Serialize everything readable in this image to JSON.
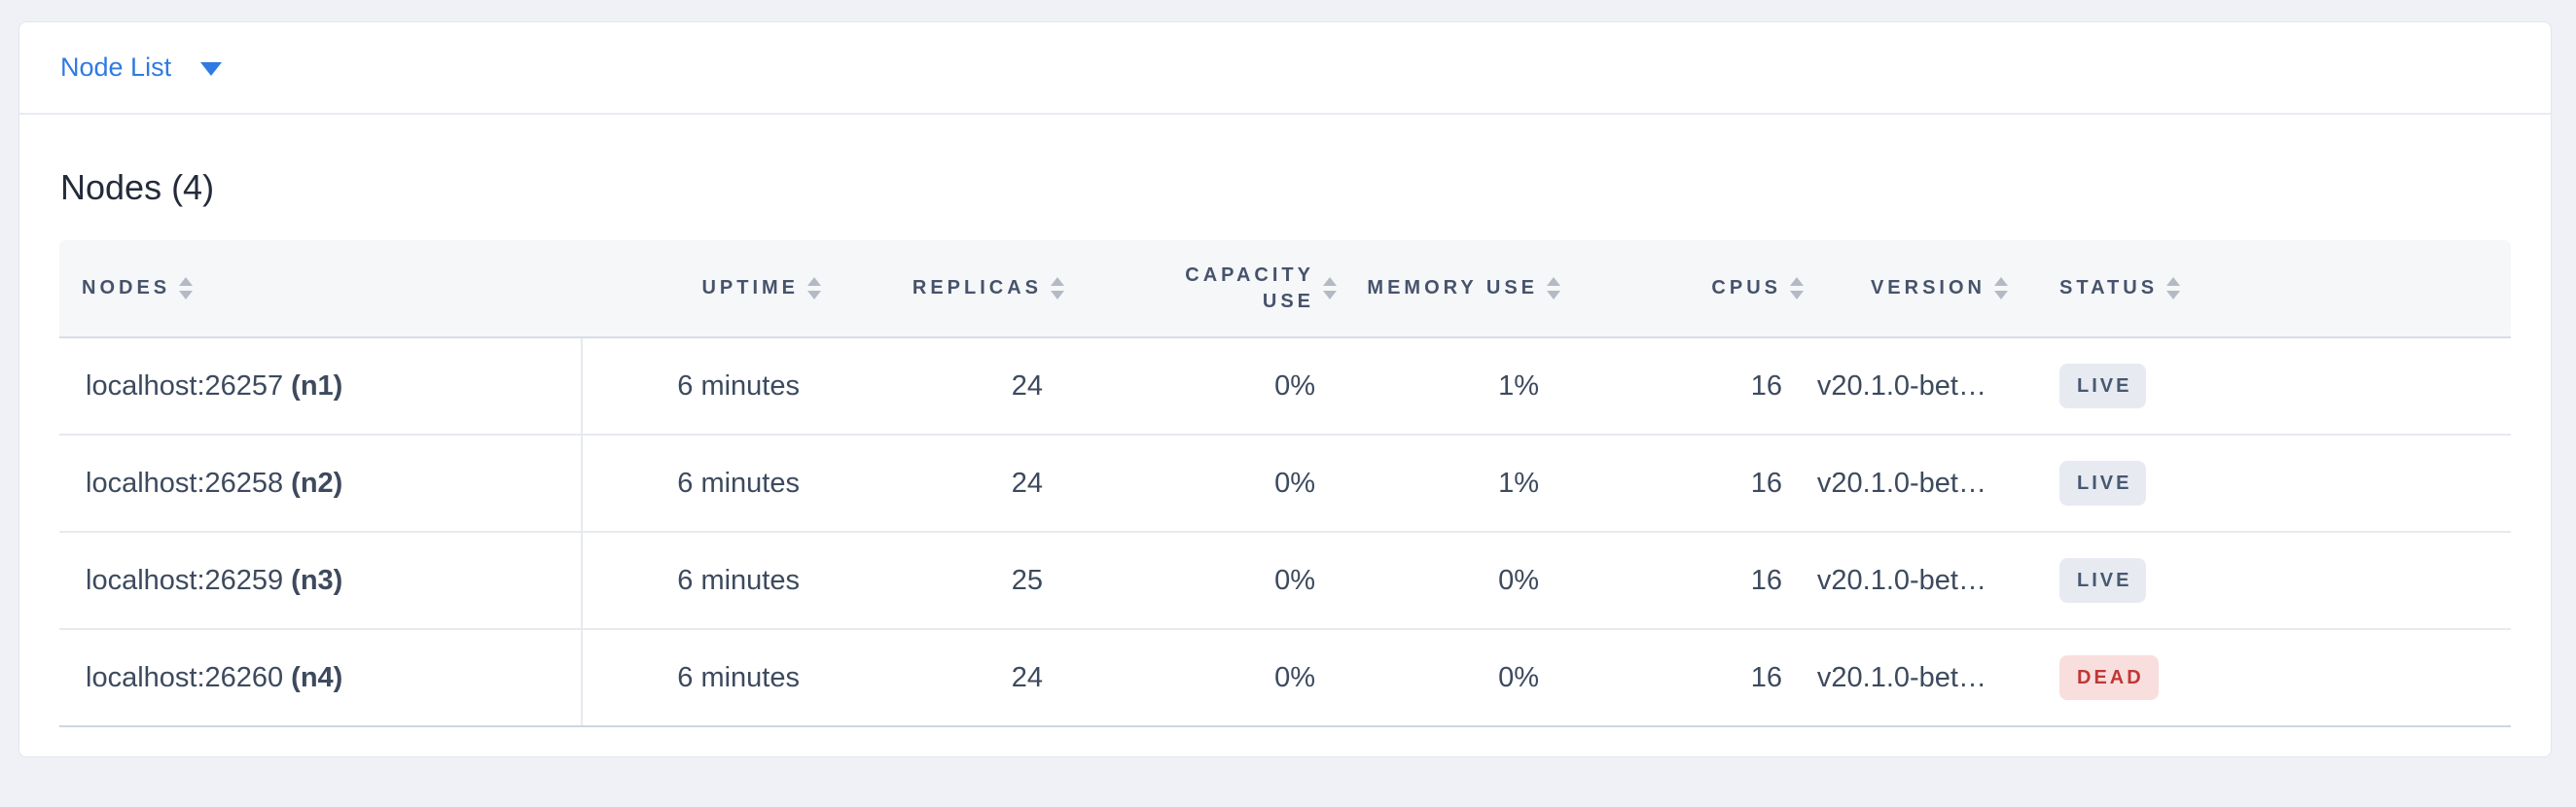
{
  "toolbar": {
    "dropdown_label": "Node List",
    "accent_color": "#2f7ae3"
  },
  "heading": {
    "title": "Nodes (4)"
  },
  "table": {
    "columns": [
      {
        "key": "nodes",
        "label": "Nodes"
      },
      {
        "key": "uptime",
        "label": "Uptime"
      },
      {
        "key": "replicas",
        "label": "Replicas"
      },
      {
        "key": "capacity",
        "label": "Capacity Use"
      },
      {
        "key": "memory",
        "label": "Memory Use"
      },
      {
        "key": "cpus",
        "label": "CPUs"
      },
      {
        "key": "version",
        "label": "Version"
      },
      {
        "key": "status",
        "label": "Status"
      }
    ],
    "rows": [
      {
        "address": "localhost:26257",
        "name": "(n1)",
        "uptime": "6 minutes",
        "replicas": "24",
        "capacity": "0%",
        "memory": "1%",
        "cpus": "16",
        "version": "v20.1.0-bet…",
        "status": "LIVE"
      },
      {
        "address": "localhost:26258",
        "name": "(n2)",
        "uptime": "6 minutes",
        "replicas": "24",
        "capacity": "0%",
        "memory": "1%",
        "cpus": "16",
        "version": "v20.1.0-bet…",
        "status": "LIVE"
      },
      {
        "address": "localhost:26259",
        "name": "(n3)",
        "uptime": "6 minutes",
        "replicas": "25",
        "capacity": "0%",
        "memory": "0%",
        "cpus": "16",
        "version": "v20.1.0-bet…",
        "status": "LIVE"
      },
      {
        "address": "localhost:26260",
        "name": "(n4)",
        "uptime": "6 minutes",
        "replicas": "24",
        "capacity": "0%",
        "memory": "0%",
        "cpus": "16",
        "version": "v20.1.0-bet…",
        "status": "DEAD"
      }
    ]
  },
  "status_colors": {
    "LIVE": {
      "bg": "#e7ebf1",
      "fg": "#475872"
    },
    "DEAD": {
      "bg": "#f9dede",
      "fg": "#bf3836"
    }
  }
}
